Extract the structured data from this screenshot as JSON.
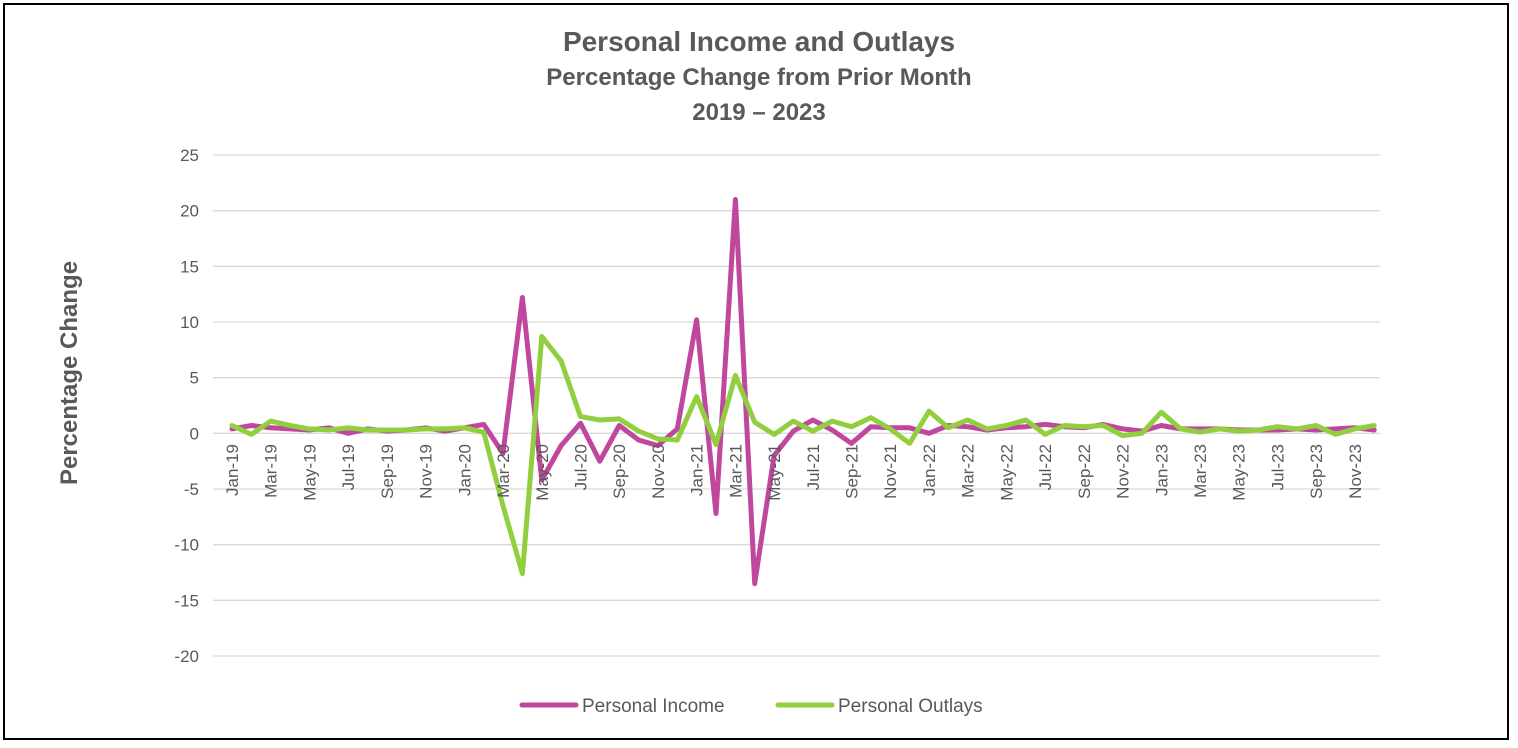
{
  "chart_data": {
    "type": "line",
    "title": "Personal Income and Outlays",
    "subtitle": "Percentage Change from Prior Month",
    "subtitle2": "2019 – 2023",
    "xlabel": "",
    "ylabel": "Percentage Change",
    "ylim": [
      -20,
      25
    ],
    "yticks": [
      25,
      20,
      15,
      10,
      5,
      0,
      -5,
      -10,
      -15,
      -20
    ],
    "grid": true,
    "legend_position": "bottom",
    "x": [
      "Jan-19",
      "Feb-19",
      "Mar-19",
      "Apr-19",
      "May-19",
      "Jun-19",
      "Jul-19",
      "Aug-19",
      "Sep-19",
      "Oct-19",
      "Nov-19",
      "Dec-19",
      "Jan-20",
      "Feb-20",
      "Mar-20",
      "Apr-20",
      "May-20",
      "Jun-20",
      "Jul-20",
      "Aug-20",
      "Sep-20",
      "Oct-20",
      "Nov-20",
      "Dec-20",
      "Jan-21",
      "Feb-21",
      "Mar-21",
      "Apr-21",
      "May-21",
      "Jun-21",
      "Jul-21",
      "Aug-21",
      "Sep-21",
      "Oct-21",
      "Nov-21",
      "Dec-21",
      "Jan-22",
      "Feb-22",
      "Mar-22",
      "Apr-22",
      "May-22",
      "Jun-22",
      "Jul-22",
      "Aug-22",
      "Sep-22",
      "Oct-22",
      "Nov-22",
      "Dec-22",
      "Jan-23",
      "Feb-23",
      "Mar-23",
      "Apr-23",
      "May-23",
      "Jun-23",
      "Jul-23",
      "Aug-23",
      "Sep-23",
      "Oct-23",
      "Nov-23",
      "Dec-23"
    ],
    "tick_labels": [
      "Jan-19",
      "Mar-19",
      "May-19",
      "Jul-19",
      "Sep-19",
      "Nov-19",
      "Jan-20",
      "Mar-20",
      "May-20",
      "Jul-20",
      "Sep-20",
      "Nov-20",
      "Jan-21",
      "Mar-21",
      "May-21",
      "Jul-21",
      "Sep-21",
      "Nov-21",
      "Jan-22",
      "Mar-22",
      "May-22",
      "Jul-22",
      "Sep-22",
      "Nov-22",
      "Jan-23",
      "Mar-23",
      "May-23",
      "Jul-23",
      "Sep-23",
      "Nov-23"
    ],
    "series": [
      {
        "name": "Personal Income",
        "color": "#C0479E",
        "values": [
          0.4,
          0.7,
          0.5,
          0.4,
          0.3,
          0.5,
          0.0,
          0.4,
          0.2,
          0.3,
          0.5,
          0.2,
          0.5,
          0.8,
          -1.8,
          12.2,
          -4.2,
          -1.1,
          0.9,
          -2.5,
          0.7,
          -0.6,
          -1.1,
          0.4,
          10.2,
          -7.2,
          21.0,
          -13.5,
          -2.0,
          0.2,
          1.2,
          0.3,
          -0.9,
          0.6,
          0.5,
          0.5,
          0.0,
          0.7,
          0.6,
          0.3,
          0.5,
          0.6,
          0.8,
          0.6,
          0.5,
          0.8,
          0.4,
          0.2,
          0.7,
          0.4,
          0.4,
          0.4,
          0.3,
          0.3,
          0.3,
          0.4,
          0.3,
          0.4,
          0.5,
          0.3
        ]
      },
      {
        "name": "Personal Outlays",
        "color": "#92CF3E",
        "values": [
          0.7,
          -0.1,
          1.1,
          0.7,
          0.4,
          0.3,
          0.5,
          0.3,
          0.3,
          0.3,
          0.4,
          0.4,
          0.5,
          0.1,
          -6.5,
          -12.6,
          8.7,
          6.5,
          1.5,
          1.2,
          1.3,
          0.2,
          -0.5,
          -0.6,
          3.3,
          -1.0,
          5.2,
          1.0,
          -0.1,
          1.1,
          0.2,
          1.1,
          0.6,
          1.4,
          0.4,
          -0.9,
          2.0,
          0.5,
          1.2,
          0.4,
          0.7,
          1.2,
          -0.1,
          0.7,
          0.6,
          0.7,
          -0.2,
          0.0,
          1.9,
          0.4,
          0.1,
          0.4,
          0.2,
          0.3,
          0.6,
          0.4,
          0.7,
          -0.1,
          0.4,
          0.7
        ]
      }
    ]
  }
}
